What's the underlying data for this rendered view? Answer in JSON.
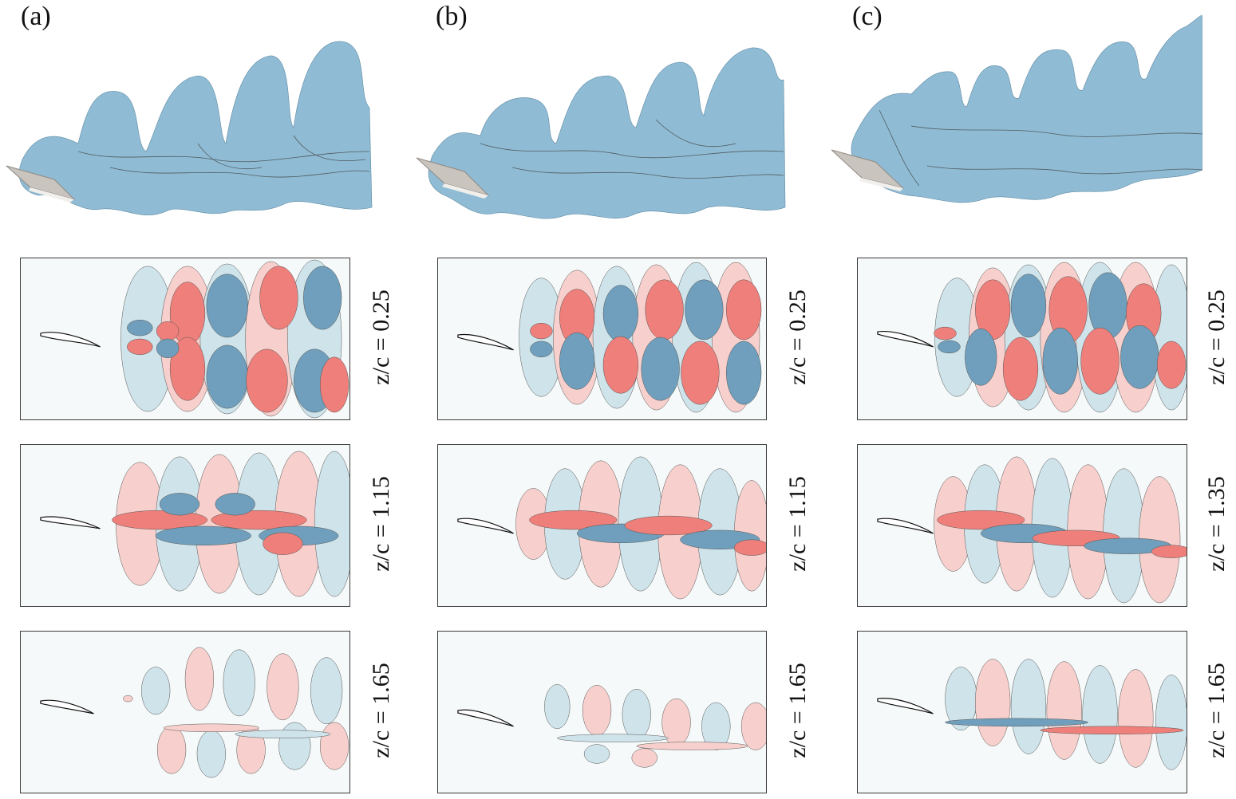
{
  "columns": [
    {
      "label": "(a)",
      "slices": [
        "z/c = 0.25",
        "z/c = 1.15",
        "z/c = 1.65"
      ]
    },
    {
      "label": "(b)",
      "slices": [
        "z/c = 0.25",
        "z/c = 1.15",
        "z/c = 1.65"
      ]
    },
    {
      "label": "(c)",
      "slices": [
        "z/c = 0.25",
        "z/c = 1.35",
        "z/c = 1.65"
      ]
    }
  ],
  "colors": {
    "isosurface": "#8fbcd4",
    "isosurface_shade": "#3d3a3a",
    "positive": "#ef7f7a",
    "positive_light": "#f7d0cd",
    "negative": "#6f9fbc",
    "negative_light": "#cfe3ea",
    "airfoil": "#c9c4bd",
    "background": "#f6f9f9"
  }
}
